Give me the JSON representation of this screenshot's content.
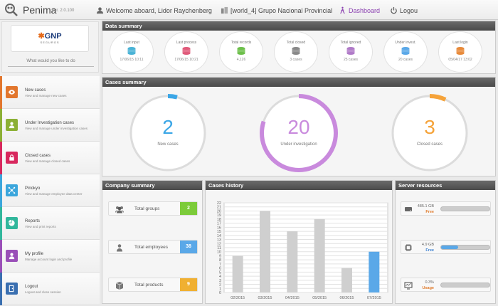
{
  "header": {
    "app_name": "Penima",
    "version": "ver. 2.0.100",
    "welcome": "Welcome aboard, Lidor Raychenberg",
    "org": "[world_4] Grupo Nacional Provincial",
    "dashboard": "Dashboard",
    "logout": "Logou"
  },
  "brand": {
    "name_main": "GNP",
    "sub": "SEGUROS",
    "prompt": "What would you like to do"
  },
  "nav": [
    {
      "title": "New cases",
      "desc": "View and manage new cases",
      "color": "#e2762d"
    },
    {
      "title": "Under Investigation cases",
      "desc": "View and manage under investigation cases",
      "color": "#8cb035"
    },
    {
      "title": "Closed cases",
      "desc": "View and manage closed cases",
      "color": "#d8285e"
    },
    {
      "title": "Pinokyo",
      "desc": "View and manage employee data center",
      "color": "#3ba6dc"
    },
    {
      "title": "Reports",
      "desc": "View and print reports",
      "color": "#31b79c"
    },
    {
      "title": "My profile",
      "desc": "Manage account login and profile",
      "color": "#9a4fb8"
    },
    {
      "title": "Logout",
      "desc": "Logout and close session",
      "color": "#3a6fb0"
    }
  ],
  "data_summary": {
    "title": "Data summary",
    "items": [
      {
        "label": "Last input",
        "value": "17/06/15 10:11",
        "icon": "database-icon",
        "color": "#4ab3d6"
      },
      {
        "label": "Last process",
        "value": "17/06/15 10:21",
        "icon": "funnel-icon",
        "color": "#e05a7a"
      },
      {
        "label": "Total records",
        "value": "4,126",
        "icon": "stack-icon",
        "color": "#6cbf4a"
      },
      {
        "label": "Total closed",
        "value": "3 cases",
        "icon": "lock-icon",
        "color": "#888888"
      },
      {
        "label": "Total ignored",
        "value": "25 cases",
        "icon": "trash-icon",
        "color": "#b07ac8"
      },
      {
        "label": "Under invest.",
        "value": "20 cases",
        "icon": "user-icon",
        "color": "#5aa8e8"
      },
      {
        "label": "Last login",
        "value": "05/04/17 13:02",
        "icon": "clock-icon",
        "color": "#e88a3a"
      }
    ]
  },
  "cases_summary": {
    "title": "Cases summary",
    "items": [
      {
        "value": "2",
        "label": "New cases",
        "color": "#3ba6e6",
        "fraction": 0.04
      },
      {
        "value": "20",
        "label": "Under investigation",
        "color": "#c98add",
        "fraction": 0.8
      },
      {
        "value": "3",
        "label": "Closed cases",
        "color": "#f5a33a",
        "fraction": 0.07
      }
    ]
  },
  "company_summary": {
    "title": "Company summary",
    "items": [
      {
        "label": "Total groups",
        "value": "2",
        "color": "#7ccb3a",
        "icon": "group-icon"
      },
      {
        "label": "Total employees",
        "value": "38",
        "color": "#5aa8e8",
        "icon": "employee-icon"
      },
      {
        "label": "Total products",
        "value": "9",
        "color": "#f0b032",
        "icon": "box-icon"
      }
    ]
  },
  "cases_history": {
    "title": "Cases history"
  },
  "chart_data": {
    "type": "bar",
    "categories": [
      "02/2015",
      "03/2015",
      "04/2015",
      "05/2015",
      "06/2015",
      "07/2015"
    ],
    "values": [
      9,
      20,
      15,
      18,
      6,
      10
    ],
    "highlight_index": 5,
    "bar_color": "#cfcfcf",
    "highlight_color": "#5aa8e8",
    "ylim": [
      0,
      22
    ],
    "yticks": [
      0,
      1,
      2,
      3,
      4,
      5,
      6,
      7,
      8,
      9,
      10,
      11,
      12,
      13,
      14,
      15,
      16,
      17,
      18,
      19,
      20,
      21,
      22
    ],
    "grid": true
  },
  "server_resources": {
    "title": "Server resources",
    "items": [
      {
        "line1": "485.1 GB",
        "line2": "Free",
        "color": "#e07a2a",
        "fill": 0.0,
        "icon": "hard-drive-icon"
      },
      {
        "line1": "4.9 GB",
        "line2": "Free",
        "color": "#3a7fd0",
        "fill": 0.35,
        "icon": "memory-chip-icon"
      },
      {
        "line1": "0.3%",
        "line2": "Usage",
        "color": "#e07a2a",
        "fill": 0.0,
        "icon": "monitor-icon"
      }
    ]
  }
}
